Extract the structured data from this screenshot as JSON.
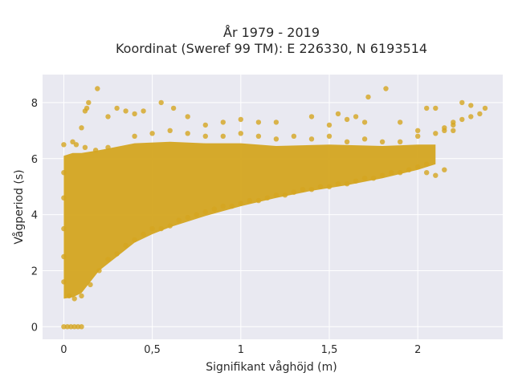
{
  "chart_data": {
    "type": "scatter",
    "title_lines": [
      "År 1979 - 2019",
      "Koordinat (Sweref 99 TM): E 226330, N 6193514"
    ],
    "xlabel": "Signifikant våghöjd (m)",
    "ylabel": "Vågperiod (s)",
    "xlim": [
      -0.12,
      2.48
    ],
    "ylim": [
      -0.45,
      9.0
    ],
    "xticks": [
      0,
      0.5,
      1,
      1.5,
      2
    ],
    "xtick_labels": [
      "0",
      "0,5",
      "1",
      "1,5",
      "2"
    ],
    "yticks": [
      0,
      2,
      4,
      6,
      8
    ],
    "ytick_labels": [
      "0",
      "2",
      "4",
      "6",
      "8"
    ],
    "grid": true,
    "marker_color": "#D4A520",
    "background_color": "#E9E9F1",
    "grid_color": "#FFFFFF",
    "points": [
      [
        0.0,
        0
      ],
      [
        0.02,
        0
      ],
      [
        0.04,
        0
      ],
      [
        0.06,
        0
      ],
      [
        0.08,
        0
      ],
      [
        0.1,
        0
      ],
      [
        0.0,
        1.6
      ],
      [
        0.0,
        2.5
      ],
      [
        0.0,
        3.5
      ],
      [
        0.0,
        4.6
      ],
      [
        0.0,
        5.5
      ],
      [
        0.0,
        6.5
      ],
      [
        0.03,
        1.1
      ],
      [
        0.05,
        6.6
      ],
      [
        0.06,
        1.0
      ],
      [
        0.07,
        6.5
      ],
      [
        0.1,
        1.1
      ],
      [
        0.12,
        6.4
      ],
      [
        0.15,
        1.5
      ],
      [
        0.18,
        6.3
      ],
      [
        0.2,
        2.0
      ],
      [
        0.25,
        2.4
      ],
      [
        0.25,
        6.4
      ],
      [
        0.3,
        2.6
      ],
      [
        0.35,
        2.9
      ],
      [
        0.4,
        3.1
      ],
      [
        0.45,
        3.3
      ],
      [
        0.5,
        3.5
      ],
      [
        0.55,
        3.5
      ],
      [
        0.6,
        3.6
      ],
      [
        0.65,
        3.8
      ],
      [
        0.7,
        3.9
      ],
      [
        0.75,
        4.0
      ],
      [
        0.8,
        4.1
      ],
      [
        0.85,
        4.2
      ],
      [
        0.9,
        4.3
      ],
      [
        0.95,
        4.3
      ],
      [
        1.0,
        4.4
      ],
      [
        1.05,
        4.5
      ],
      [
        1.1,
        4.5
      ],
      [
        1.15,
        4.6
      ],
      [
        1.2,
        4.7
      ],
      [
        1.25,
        4.7
      ],
      [
        1.3,
        4.8
      ],
      [
        1.35,
        4.9
      ],
      [
        1.4,
        4.9
      ],
      [
        1.45,
        5.0
      ],
      [
        1.5,
        5.0
      ],
      [
        1.55,
        5.1
      ],
      [
        1.6,
        5.1
      ],
      [
        1.65,
        5.2
      ],
      [
        1.7,
        5.3
      ],
      [
        1.75,
        5.3
      ],
      [
        1.8,
        5.4
      ],
      [
        1.85,
        5.5
      ],
      [
        1.9,
        5.5
      ],
      [
        1.95,
        5.6
      ],
      [
        2.0,
        5.7
      ],
      [
        2.05,
        5.8
      ],
      [
        0.4,
        6.8
      ],
      [
        0.5,
        6.9
      ],
      [
        0.6,
        7.0
      ],
      [
        0.7,
        6.9
      ],
      [
        0.8,
        6.8
      ],
      [
        0.9,
        6.8
      ],
      [
        1.0,
        6.9
      ],
      [
        1.1,
        6.8
      ],
      [
        1.2,
        6.7
      ],
      [
        1.3,
        6.8
      ],
      [
        1.4,
        6.7
      ],
      [
        1.5,
        6.8
      ],
      [
        1.6,
        6.6
      ],
      [
        1.7,
        6.7
      ],
      [
        1.8,
        6.6
      ],
      [
        1.9,
        6.6
      ],
      [
        2.0,
        6.8
      ],
      [
        2.1,
        6.9
      ],
      [
        2.15,
        7.0
      ],
      [
        2.2,
        7.2
      ],
      [
        2.25,
        7.4
      ],
      [
        2.3,
        7.5
      ],
      [
        2.35,
        7.6
      ],
      [
        2.38,
        7.8
      ],
      [
        2.3,
        7.9
      ],
      [
        2.25,
        8.0
      ],
      [
        2.2,
        7.3
      ],
      [
        2.15,
        7.1
      ],
      [
        2.05,
        7.8
      ],
      [
        2.1,
        7.8
      ],
      [
        2.2,
        7.0
      ],
      [
        2.05,
        5.5
      ],
      [
        2.1,
        5.4
      ],
      [
        2.15,
        5.6
      ],
      [
        0.1,
        7.1
      ],
      [
        0.12,
        7.7
      ],
      [
        0.13,
        7.8
      ],
      [
        0.14,
        8.0
      ],
      [
        0.19,
        8.5
      ],
      [
        0.25,
        7.5
      ],
      [
        0.3,
        7.8
      ],
      [
        0.35,
        7.7
      ],
      [
        0.4,
        7.6
      ],
      [
        0.45,
        7.7
      ],
      [
        0.55,
        8.0
      ],
      [
        0.62,
        7.8
      ],
      [
        0.7,
        7.5
      ],
      [
        0.8,
        7.2
      ],
      [
        0.9,
        7.3
      ],
      [
        1.0,
        7.4
      ],
      [
        1.1,
        7.3
      ],
      [
        1.2,
        7.3
      ],
      [
        1.4,
        7.5
      ],
      [
        1.55,
        7.6
      ],
      [
        1.6,
        7.4
      ],
      [
        1.7,
        7.3
      ],
      [
        1.72,
        8.2
      ],
      [
        1.82,
        8.5
      ],
      [
        1.9,
        7.3
      ],
      [
        2.0,
        7.0
      ],
      [
        1.65,
        7.5
      ],
      [
        1.5,
        7.2
      ]
    ]
  }
}
